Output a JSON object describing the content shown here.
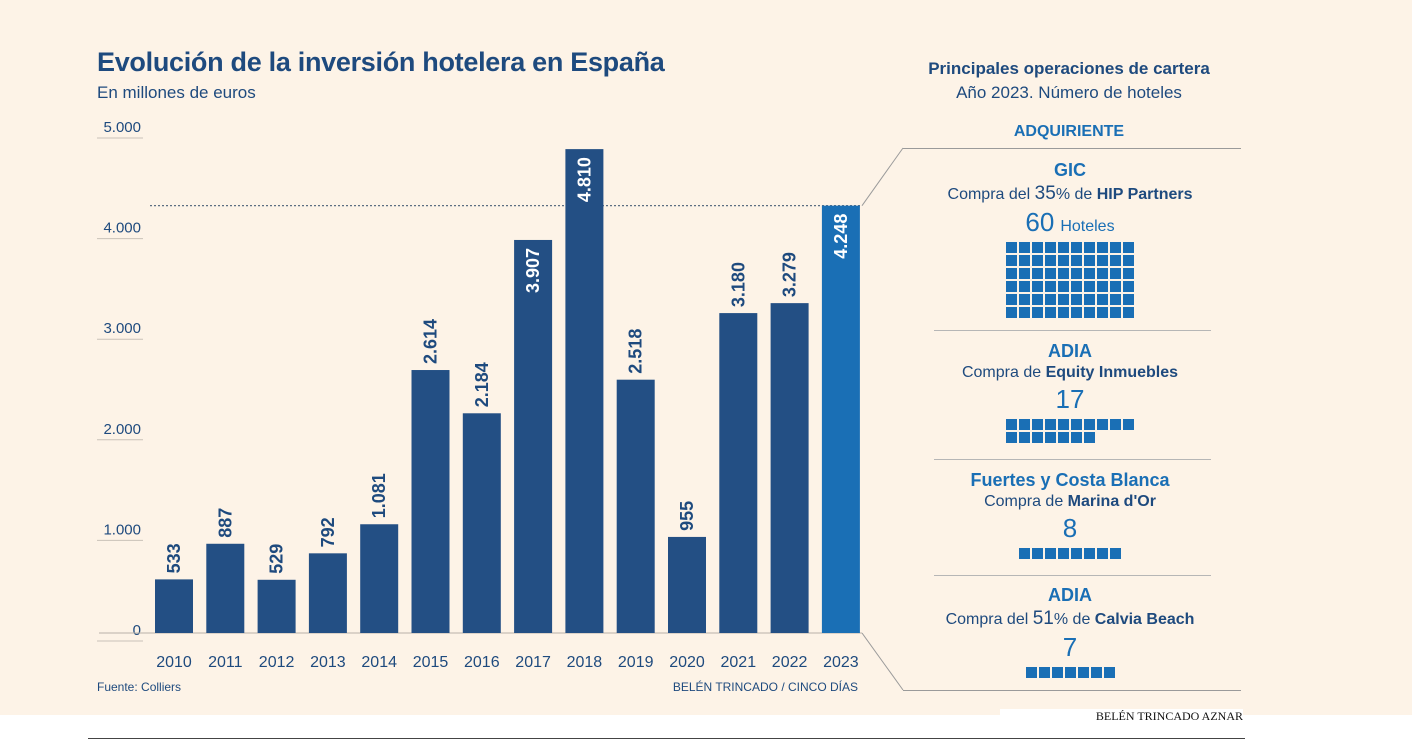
{
  "chart_data": {
    "type": "bar",
    "title": "Evolución de la inversión hotelera en España",
    "subtitle": "En millones de euros",
    "categories": [
      "2010",
      "2011",
      "2012",
      "2013",
      "2014",
      "2015",
      "2016",
      "2017",
      "2018",
      "2019",
      "2020",
      "2021",
      "2022",
      "2023"
    ],
    "values": [
      533,
      887,
      529,
      792,
      1081,
      2614,
      2184,
      3907,
      4810,
      2518,
      955,
      3180,
      3279,
      4248
    ],
    "value_labels": [
      "533",
      "887",
      "529",
      "792",
      "1.081",
      "2.614",
      "2.184",
      "3.907",
      "4.810",
      "2.518",
      "955",
      "3.180",
      "3.279",
      "4.248"
    ],
    "yticks": [
      0,
      1000,
      2000,
      3000,
      4000,
      5000
    ],
    "ytick_labels": [
      "0",
      "1.000",
      "2.000",
      "3.000",
      "4.000",
      "5.000"
    ],
    "ylim": [
      0,
      5000
    ],
    "reference_line_value": 4248,
    "highlight_index": 13,
    "grid": false,
    "colors": {
      "bar": "#234f84",
      "highlight": "#1a6fb5",
      "label": "#1e4a7e"
    }
  },
  "source": "Fuente: Colliers",
  "credit": "BELÉN TRINCADO / CINCO DÍAS",
  "sidebar": {
    "title": "Principales operaciones de cartera",
    "subtitle": "Año 2023. Número de hoteles",
    "header": "ADQUIRIENTE",
    "operations": [
      {
        "buyer": "GIC",
        "desc_pre": "Compra del ",
        "desc_big": "35",
        "desc_mid": "% de ",
        "desc_bold": "HIP Partners",
        "count": 60,
        "count_label": "60",
        "unit": "Hoteles",
        "grid_cols": 10
      },
      {
        "buyer": "ADIA",
        "desc_pre": "Compra de ",
        "desc_big": "",
        "desc_mid": "",
        "desc_bold": "Equity Inmuebles",
        "count": 17,
        "count_label": "17",
        "unit": "",
        "grid_cols": 10
      },
      {
        "buyer": "Fuertes y Costa Blanca",
        "desc_pre": "Compra de ",
        "desc_big": "",
        "desc_mid": "",
        "desc_bold": "Marina d'Or",
        "count": 8,
        "count_label": "8",
        "unit": "",
        "grid_cols": 8
      },
      {
        "buyer": "ADIA",
        "desc_pre": "Compra del ",
        "desc_big": "51",
        "desc_mid": "% de ",
        "desc_bold": "Calvia Beach",
        "count": 7,
        "count_label": "7",
        "unit": "",
        "grid_cols": 7
      }
    ]
  },
  "footer_author": "BELÉN TRINCADO AZNAR"
}
